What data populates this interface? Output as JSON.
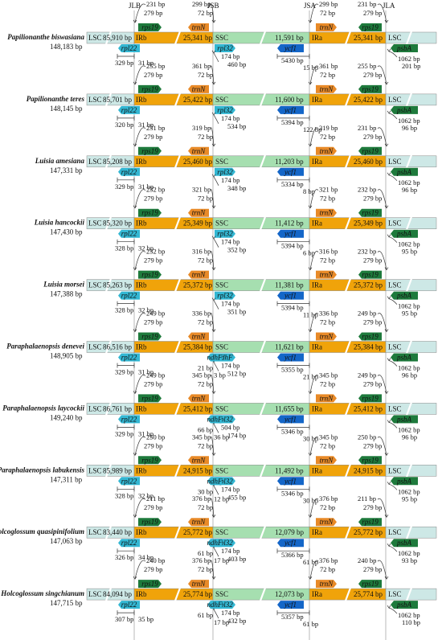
{
  "junctions": [
    "JLB",
    "JSB",
    "JSA",
    "JLA"
  ],
  "region_labels": {
    "lsc": "LSC",
    "irb": "IRb",
    "ssc": "SSC",
    "ira": "IRa"
  },
  "colors": {
    "lsc": "#cde8e6",
    "ir": "#f0a30a",
    "ssc": "#a6dfb0",
    "rps19": "#1e7a3c",
    "rpl22": "#33b7d3",
    "trnN": "#e88a28",
    "ndhF": "#33b7d3",
    "ycf1": "#1466c8",
    "psbA": "#1e7a3c",
    "species_red": "#c0202a"
  },
  "genes": {
    "rps19": "rps19",
    "rpl22": "rpl22",
    "trnN": "trnN",
    "ycf1": "ycf1",
    "psbA": "psbA",
    "ndhF": "ndhF",
    "rpl32": "rpl32"
  },
  "species": [
    {
      "name": "Papilionanthe biswasiana",
      "total": "148,183 bp",
      "red": true,
      "lsc": "85,910 bp",
      "ir": "25,341 bp",
      "ssc": "11,591 bp",
      "rps19_top": [
        "231 bp",
        "279 bp"
      ],
      "trnN_top": [
        "299 bp",
        "72 bp"
      ],
      "ssc_gene": "rpl32",
      "ssc_gene_vals": [
        "174 bp",
        "460 bp"
      ],
      "ycf1_vals": [
        "5430 bp",
        "15 bp"
      ],
      "rpl22_vals": [
        "329 bp",
        "31 bp"
      ],
      "right_trnN": [
        "299 bp",
        "72 bp"
      ],
      "right_rps19": [
        "231 bp",
        "279 bp"
      ],
      "psbA_vals": [
        "1062 bp",
        "201 bp"
      ]
    },
    {
      "name": "Papilionanthe teres",
      "total": "148,145 bp",
      "red": true,
      "lsc": "85,701 bp",
      "ir": "25,422 bp",
      "ssc": "11,600 bp",
      "rps19_top": [
        "255 bp",
        "279 bp"
      ],
      "trnN_top": [
        "361 bp",
        "72 bp"
      ],
      "ssc_gene": "rpl32",
      "ssc_gene_vals": [
        "174 bp",
        "534 bp"
      ],
      "ycf1_vals": [
        "5394 bp",
        "122 bp"
      ],
      "rpl22_vals": [
        "320 bp",
        "31 bp"
      ],
      "right_trnN": [
        "361 bp",
        "72 bp"
      ],
      "right_rps19": [
        "255 bp",
        "279 bp"
      ],
      "psbA_vals": [
        "1062 bp",
        "96 bp"
      ]
    },
    {
      "name": "Luisia amesiana",
      "total": "147,331 bp",
      "red": false,
      "lsc": "85,208 bp",
      "ir": "25,460 bp",
      "ssc": "11,203 bp",
      "rps19_top": [
        "231 bp",
        "279 bp"
      ],
      "trnN_top": [
        "319 bp",
        "72 bp"
      ],
      "ssc_gene": "rpl32",
      "ssc_gene_vals": [
        "174 bp",
        "348 bp"
      ],
      "ycf1_vals": [
        "5334 bp",
        "8 bp"
      ],
      "rpl22_vals": [
        "329 bp",
        "31 bp"
      ],
      "right_trnN": [
        "319 bp",
        "72 bp"
      ],
      "right_rps19": [
        "231 bp",
        "279 bp"
      ],
      "psbA_vals": [
        "1062 bp",
        "96 bp"
      ]
    },
    {
      "name": "Luisia hancockii",
      "total": "147,430 bp",
      "red": false,
      "lsc": "85,320 bp",
      "ir": "25,349 bp",
      "ssc": "11,412 bp",
      "rps19_top": [
        "232 bp",
        "279 bp"
      ],
      "trnN_top": [
        "321 bp",
        "72 bp"
      ],
      "ssc_gene": "rpl32",
      "ssc_gene_vals": [
        "174 bp",
        "352 bp"
      ],
      "ycf1_vals": [
        "5394 bp",
        "6 bp"
      ],
      "rpl22_vals": [
        "328 bp",
        "32 bp"
      ],
      "right_trnN": [
        "321 bp",
        "72 bp"
      ],
      "right_rps19": [
        "232 bp",
        "279 bp"
      ],
      "psbA_vals": [
        "1062 bp",
        "95 bp"
      ]
    },
    {
      "name": "Luisia morsei",
      "total": "147,388 bp",
      "red": false,
      "lsc": "85,263 bp",
      "ir": "25,372 bp",
      "ssc": "11,381 bp",
      "rps19_top": [
        "232 bp",
        "279 bp"
      ],
      "trnN_top": [
        "316 bp",
        "72 bp"
      ],
      "ssc_gene": "rpl32",
      "ssc_gene_vals": [
        "174 bp",
        "351 bp"
      ],
      "ycf1_vals": [
        "5394 bp",
        "11 bp"
      ],
      "rpl22_vals": [
        "328 bp",
        "32 bp"
      ],
      "right_trnN": [
        "316 bp",
        "72 bp"
      ],
      "right_rps19": [
        "232 bp",
        "279 bp"
      ],
      "psbA_vals": [
        "1062 bp",
        "95 bp"
      ]
    },
    {
      "name": "Paraphalaenopsis denevei",
      "total": "148,905 bp",
      "red": false,
      "lsc": "86,516 bp",
      "ir": "25,384 bp",
      "ssc": "11,621 bp",
      "rps19_top": [
        "249 bp",
        "279 bp"
      ],
      "trnN_top": [
        "336 bp",
        "72 bp"
      ],
      "ssc_gene": "ndhF",
      "ssc_gene_vals": [
        "174 bp",
        "512 bp"
      ],
      "ndhF_small": [
        "21 bp",
        "3 bp"
      ],
      "ycf1_vals": [
        "5355 bp",
        "21 bp"
      ],
      "rpl22_vals": [
        "329 bp",
        "31 bp"
      ],
      "right_trnN": [
        "336 bp",
        "72 bp"
      ],
      "right_rps19": [
        "249 bp",
        "279 bp"
      ],
      "psbA_vals": [
        "1062 bp",
        "96 bp"
      ]
    },
    {
      "name": "Paraphalaenopsis laycockii",
      "total": "149,240 bp",
      "red": false,
      "lsc": "86,761 bp",
      "ir": "25,412 bp",
      "ssc": "11,655 bp",
      "rps19_top": [
        "249 bp",
        "279 bp"
      ],
      "trnN_top": [
        "345 bp",
        "72 bp"
      ],
      "ssc_gene": "rpl32",
      "ssc_gene_vals": [
        "504 bp",
        "174 bp"
      ],
      "ndhF_small": [
        "66 bp",
        "36 bp"
      ],
      "ycf1_vals": [
        "5346 bp",
        "30 bp"
      ],
      "rpl22_vals": [
        "329 bp",
        "31 bp"
      ],
      "right_trnN": [
        "345 bp",
        "72 bp"
      ],
      "right_rps19": [
        "249 bp",
        "279 bp"
      ],
      "psbA_vals": [
        "1062 bp",
        "96 bp"
      ]
    },
    {
      "name": "Paraphalaenopsis labukensis",
      "total": "147,311 bp",
      "red": false,
      "lsc": "85,989 bp",
      "ir": "24,915 bp",
      "ssc": "11,492 bp",
      "rps19_top": [
        "250 bp",
        "279 bp"
      ],
      "trnN_top": [
        "345 bp",
        "72 bp"
      ],
      "ssc_gene": "rpl32",
      "ssc_gene_vals": [
        "174 bp",
        "455 bp"
      ],
      "ndhF_small": [
        "30 bp",
        "12 bp"
      ],
      "ycf1_vals": [
        "5346 bp",
        "30 bp"
      ],
      "rpl22_vals": [
        "328 bp",
        "32 bp"
      ],
      "right_trnN": [
        "345 bp",
        "72 bp"
      ],
      "right_rps19": [
        "250 bp",
        "279 bp"
      ],
      "psbA_vals": [
        "1062 bp",
        "95 bp"
      ]
    },
    {
      "name": "Holcoglossum quasipinifolium",
      "total": "147,063 bp",
      "red": false,
      "lsc": "83,440 bp",
      "ir": "25,772 bp",
      "ssc": "12,079 bp",
      "rps19_top": [
        "211 bp",
        "279 bp"
      ],
      "trnN_top": [
        "376 bp",
        "72 bp"
      ],
      "ssc_gene": "rpl32",
      "ssc_gene_vals": [
        "174 bp",
        "403 bp"
      ],
      "ndhF_small": [
        "61 bp",
        "17 bp"
      ],
      "ycf1_vals": [
        "5366 bp",
        "61 bp"
      ],
      "rpl22_vals": [
        "326 bp",
        "34 bp"
      ],
      "right_trnN": [
        "376 bp",
        "72 bp"
      ],
      "right_rps19": [
        "211 bp",
        "279 bp"
      ],
      "psbA_vals": [
        "1062 bp",
        "93 bp"
      ]
    },
    {
      "name": "Holcoglossum singchianum",
      "total": "147,715 bp",
      "red": false,
      "lsc": "84,094 bp",
      "ir": "25,774 bp",
      "ssc": "12,073 bp",
      "rps19_top": [
        "240 bp",
        "279 bp"
      ],
      "trnN_top": [
        "376 bp",
        "72 bp"
      ],
      "ssc_gene": "rpl32",
      "ssc_gene_vals": [
        "174 bp",
        "432 bp"
      ],
      "ndhF_small": [
        "61 bp",
        "17 bp"
      ],
      "ycf1_vals": [
        "5357 bp",
        "61 bp"
      ],
      "rpl22_vals": [
        "307 bp",
        "35 bp"
      ],
      "right_trnN": [
        "376 bp",
        "72 bp"
      ],
      "right_rps19": [
        "240 bp",
        "279 bp"
      ],
      "psbA_vals": [
        "1062 bp",
        "110 bp"
      ]
    }
  ]
}
